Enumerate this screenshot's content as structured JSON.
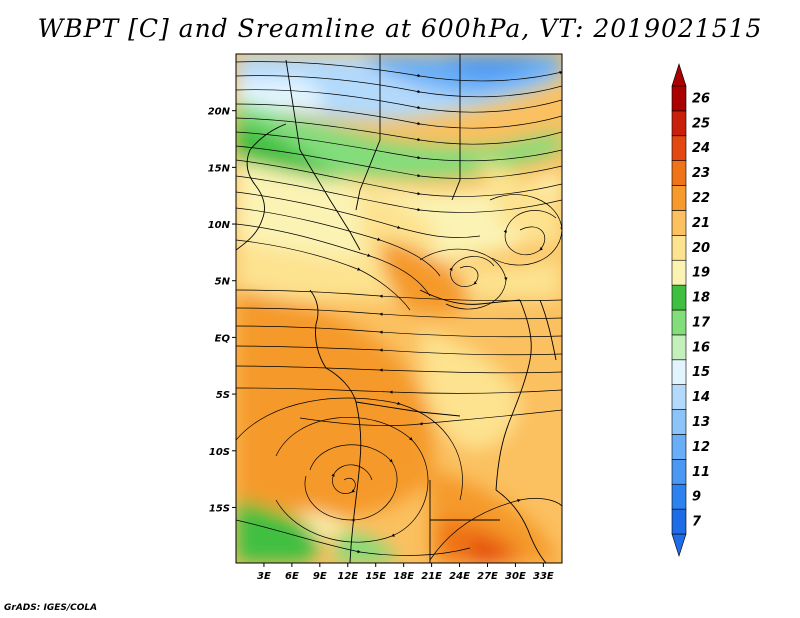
{
  "title": "WBPT [C] and Sreamline at 600hPa, VT: 2019021515",
  "credit": "GrADS: IGES/COLA",
  "map": {
    "lat_labels": [
      "20N",
      "15N",
      "10N",
      "5N",
      "EQ",
      "5S",
      "10S",
      "15S"
    ],
    "lat_values": [
      20,
      15,
      10,
      5,
      0,
      -5,
      -10,
      -15
    ],
    "lon_labels": [
      "3E",
      "6E",
      "9E",
      "12E",
      "15E",
      "18E",
      "21E",
      "24E",
      "27E",
      "30E",
      "33E"
    ],
    "lon_values": [
      3,
      6,
      9,
      12,
      15,
      18,
      21,
      24,
      27,
      30,
      33
    ],
    "lat_range": [
      -19.9,
      25
    ],
    "lon_range": [
      0,
      35
    ]
  },
  "colorbar": {
    "labels": [
      "7",
      "9",
      "11",
      "12",
      "13",
      "14",
      "15",
      "16",
      "17",
      "18",
      "19",
      "20",
      "21",
      "22",
      "23",
      "24",
      "25",
      "26"
    ],
    "colors": [
      "#1e6ce6",
      "#2e82ef",
      "#4a98f3",
      "#69aef6",
      "#8cc3f8",
      "#b3d9fb",
      "#e2f5ff",
      "#c3f0bb",
      "#82dd7b",
      "#3fbf3f",
      "#fbf3b4",
      "#fde28f",
      "#fbc060",
      "#f59a2b",
      "#ef7318",
      "#e24811",
      "#c8200a",
      "#aa0000"
    ],
    "arrow_low_color": "#1e6ce6",
    "arrow_high_color": "#aa0000"
  }
}
